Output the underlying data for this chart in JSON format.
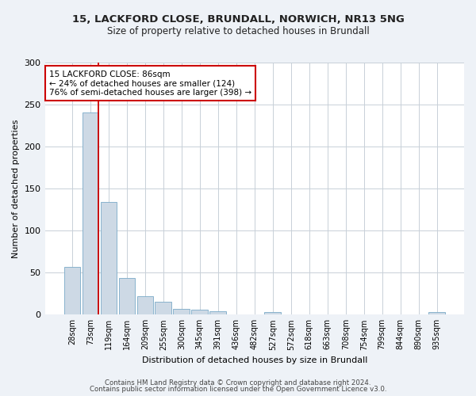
{
  "title_line1": "15, LACKFORD CLOSE, BRUNDALL, NORWICH, NR13 5NG",
  "title_line2": "Size of property relative to detached houses in Brundall",
  "xlabel": "Distribution of detached houses by size in Brundall",
  "ylabel": "Number of detached properties",
  "bar_labels": [
    "28sqm",
    "73sqm",
    "119sqm",
    "164sqm",
    "209sqm",
    "255sqm",
    "300sqm",
    "345sqm",
    "391sqm",
    "436sqm",
    "482sqm",
    "527sqm",
    "572sqm",
    "618sqm",
    "663sqm",
    "708sqm",
    "754sqm",
    "799sqm",
    "844sqm",
    "890sqm",
    "935sqm"
  ],
  "bar_values": [
    57,
    241,
    134,
    44,
    22,
    15,
    7,
    6,
    4,
    0,
    0,
    3,
    0,
    0,
    0,
    0,
    0,
    0,
    0,
    0,
    3
  ],
  "bar_color": "#cdd9e5",
  "bar_edge_color": "#7aaac8",
  "ylim": [
    0,
    300
  ],
  "yticks": [
    0,
    50,
    100,
    150,
    200,
    250,
    300
  ],
  "annotation_text": "15 LACKFORD CLOSE: 86sqm\n← 24% of detached houses are smaller (124)\n76% of semi-detached houses are larger (398) →",
  "annotation_box_color": "#ffffff",
  "annotation_box_edge_color": "#cc0000",
  "red_line_color": "#cc0000",
  "red_line_bar_index": 1,
  "footer_line1": "Contains HM Land Registry data © Crown copyright and database right 2024.",
  "footer_line2": "Contains public sector information licensed under the Open Government Licence v3.0.",
  "background_color": "#eef2f7",
  "plot_background_color": "#ffffff",
  "grid_color": "#c8d0d8"
}
